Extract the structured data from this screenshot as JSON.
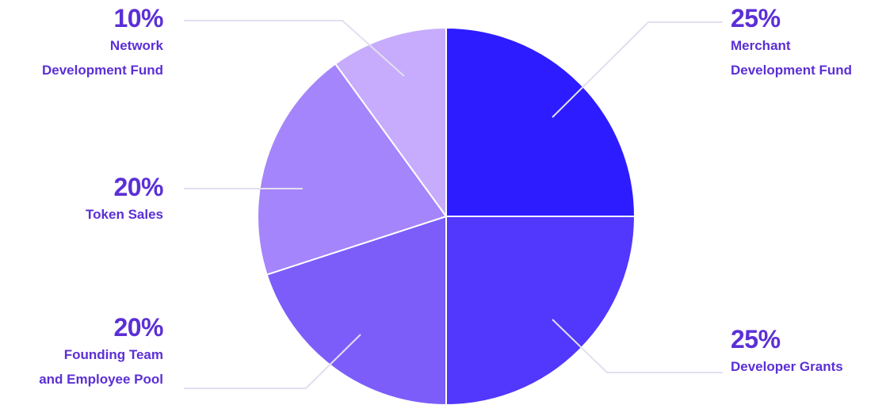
{
  "chart_data": {
    "type": "pie",
    "title": "",
    "slices": [
      {
        "label_lines": [
          "Merchant",
          "Development Fund"
        ],
        "value": 25,
        "percent_label": "25%",
        "color": "#2d1cff"
      },
      {
        "label_lines": [
          "Developer Grants"
        ],
        "value": 25,
        "percent_label": "25%",
        "color": "#5237fd"
      },
      {
        "label_lines": [
          "Founding Team",
          "and Employee Pool"
        ],
        "value": 20,
        "percent_label": "20%",
        "color": "#7c5dfa"
      },
      {
        "label_lines": [
          "Token Sales"
        ],
        "value": 20,
        "percent_label": "20%",
        "color": "#a585fb"
      },
      {
        "label_lines": [
          "Network",
          "Development Fund"
        ],
        "value": 10,
        "percent_label": "10%",
        "color": "#c7acfd"
      }
    ],
    "start_angle": "12 o'clock",
    "direction": "clockwise",
    "legend": "none",
    "label_color": "#5b2fd6"
  }
}
